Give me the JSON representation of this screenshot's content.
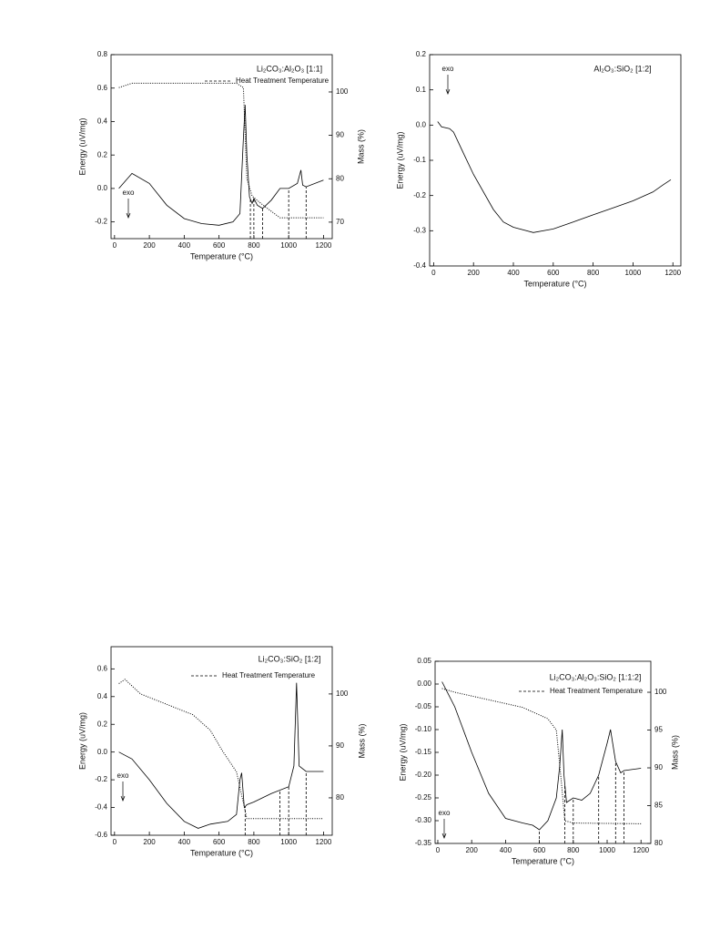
{
  "chart_data": [
    {
      "type": "line",
      "title": "Li₂CO₃:Al₂O₃ [1:1]",
      "x_label": "Temperature (°C)",
      "y_label": "Energy (uV/mg)",
      "y2_label": "Mass (%)",
      "exo": "exo",
      "xlim": [
        -20,
        1250
      ],
      "xticks": [
        0,
        200,
        400,
        600,
        800,
        1000,
        1200
      ],
      "ylim": [
        -0.3,
        0.8
      ],
      "yticks": [
        -0.2,
        {
          "value": 0,
          "label": "0.0"
        },
        0.2,
        0.4,
        0.6,
        0.8
      ],
      "y2lim": [
        66.2,
        108.6
      ],
      "y2ticks": [
        70,
        80,
        90,
        100
      ],
      "series": [
        {
          "color": "#000000",
          "style": "solid",
          "x": [
            25,
            100,
            200,
            300,
            400,
            500,
            600,
            680,
            720,
            740,
            750,
            760,
            775,
            790,
            800,
            820,
            850,
            900,
            950,
            1000,
            1050,
            1070,
            1080,
            1100,
            1200
          ],
          "values": [
            0.0,
            0.09,
            0.03,
            -0.1,
            -0.18,
            -0.21,
            -0.22,
            -0.2,
            -0.15,
            0.3,
            0.5,
            0.2,
            -0.05,
            -0.09,
            -0.06,
            -0.1,
            -0.12,
            -0.07,
            0.0,
            0.0,
            0.03,
            0.11,
            0.02,
            0.01,
            0.05
          ]
        },
        {
          "color": "#000000",
          "style": "dotted",
          "axis": "y2",
          "x": [
            25,
            100,
            300,
            700,
            740,
            760,
            790,
            850,
            950,
            1000,
            1200
          ],
          "values": [
            101,
            102,
            102,
            102,
            101,
            80,
            76,
            74,
            71,
            71,
            71
          ]
        }
      ],
      "heat_treatment": {
        "name": "Heat Treatment Temperature",
        "x": [
          780,
          800,
          850,
          1000,
          1100
        ]
      }
    },
    {
      "type": "line",
      "title": "Al₂O₃:SiO₂ [1:2]",
      "x_label": "Temperature (°C)",
      "y_label": "Energy (uV/mg)",
      "exo": "exo",
      "xlim": [
        -20,
        1240
      ],
      "xticks": [
        0,
        200,
        400,
        600,
        800,
        1000,
        1200
      ],
      "ylim": [
        -0.4,
        0.2
      ],
      "yticks": [
        -0.4,
        -0.3,
        -0.2,
        -0.1,
        {
          "value": 0,
          "label": "0.0"
        },
        0.1,
        0.2
      ],
      "series": [
        {
          "color": "#000000",
          "style": "solid",
          "x": [
            20,
            40,
            80,
            100,
            150,
            200,
            300,
            350,
            400,
            500,
            600,
            700,
            800,
            900,
            1000,
            1100,
            1150,
            1190
          ],
          "values": [
            0.01,
            -0.005,
            -0.01,
            -0.02,
            -0.08,
            -0.14,
            -0.24,
            -0.275,
            -0.29,
            -0.305,
            -0.295,
            -0.275,
            -0.255,
            -0.235,
            -0.215,
            -0.19,
            -0.17,
            -0.155
          ]
        }
      ]
    },
    {
      "type": "line",
      "title": "Li₂CO₃:SiO₂ [1:2]",
      "x_label": "Temperature (°C)",
      "y_label": "Energy (uV/mg)",
      "y2_label": "Mass (%)",
      "exo": "exo",
      "xlim": [
        -20,
        1250
      ],
      "xticks": [
        0,
        200,
        400,
        600,
        800,
        1000,
        1200
      ],
      "ylim": [
        -0.6,
        0.76
      ],
      "yticks": [
        -0.6,
        -0.4,
        -0.2,
        {
          "value": 0,
          "label": "0.0"
        },
        0.2,
        0.4,
        0.6
      ],
      "y2lim": [
        72.8,
        109.1
      ],
      "y2ticks": [
        80,
        90,
        100
      ],
      "series": [
        {
          "color": "#000000",
          "style": "solid",
          "x": [
            25,
            100,
            200,
            300,
            400,
            480,
            550,
            650,
            700,
            720,
            730,
            745,
            760,
            800,
            900,
            1000,
            1030,
            1045,
            1060,
            1100,
            1200
          ],
          "values": [
            0.0,
            -0.05,
            -0.2,
            -0.37,
            -0.5,
            -0.55,
            -0.52,
            -0.5,
            -0.45,
            -0.2,
            -0.15,
            -0.4,
            -0.38,
            -0.36,
            -0.3,
            -0.25,
            -0.1,
            0.5,
            -0.1,
            -0.14,
            -0.14
          ]
        },
        {
          "color": "#000000",
          "style": "dotted",
          "axis": "y2",
          "x": [
            25,
            60,
            150,
            300,
            450,
            550,
            620,
            700,
            740,
            760,
            1200
          ],
          "values": [
            102,
            102.8,
            100,
            98,
            96,
            93,
            89,
            85,
            79,
            76,
            76
          ]
        }
      ],
      "heat_treatment": {
        "name": "Heat Treatment Temperature",
        "x": [
          750,
          950,
          1000,
          1100
        ]
      }
    },
    {
      "type": "line",
      "title": "Li₂CO₃:Al₂O₃:SiO₂  [1:1:2]",
      "x_label": "Temperature (°C)",
      "y_label": "Energy (uV/mg)",
      "y2_label": "Mass (%)",
      "exo": "exo",
      "xlim": [
        -16,
        1258
      ],
      "xticks": [
        0,
        200,
        400,
        600,
        800,
        1000,
        1200
      ],
      "ylim": [
        -0.35,
        0.05
      ],
      "yticks": [
        -0.35,
        {
          "value": -0.3,
          "label": "-0.30"
        },
        -0.25,
        {
          "value": -0.2,
          "label": "-0.20"
        },
        -0.15,
        {
          "value": -0.1,
          "label": "-0.10"
        },
        -0.05,
        {
          "value": 0,
          "label": "0.00"
        },
        0.05
      ],
      "y2lim": [
        80,
        104.1
      ],
      "y2ticks": [
        80,
        85,
        90,
        95,
        100
      ],
      "series": [
        {
          "color": "#000000",
          "style": "solid",
          "x": [
            25,
            100,
            200,
            300,
            400,
            500,
            560,
            600,
            650,
            700,
            720,
            735,
            745,
            760,
            800,
            850,
            900,
            950,
            1000,
            1020,
            1050,
            1080,
            1100,
            1200
          ],
          "values": [
            0.005,
            -0.05,
            -0.15,
            -0.24,
            -0.295,
            -0.305,
            -0.31,
            -0.32,
            -0.3,
            -0.25,
            -0.18,
            -0.1,
            -0.2,
            -0.26,
            -0.25,
            -0.255,
            -0.24,
            -0.2,
            -0.13,
            -0.1,
            -0.17,
            -0.195,
            -0.19,
            -0.185
          ]
        },
        {
          "color": "#000000",
          "style": "dotted",
          "axis": "y2",
          "x": [
            25,
            100,
            300,
            500,
            650,
            700,
            730,
            750,
            800,
            1200
          ],
          "values": [
            100.5,
            100,
            99,
            98,
            96.5,
            95,
            88,
            83,
            82.7,
            82.6
          ]
        }
      ],
      "heat_treatment": {
        "name": "Heat Treatment Temperature",
        "x": [
          600,
          750,
          800,
          950,
          1050,
          1100
        ]
      }
    }
  ]
}
